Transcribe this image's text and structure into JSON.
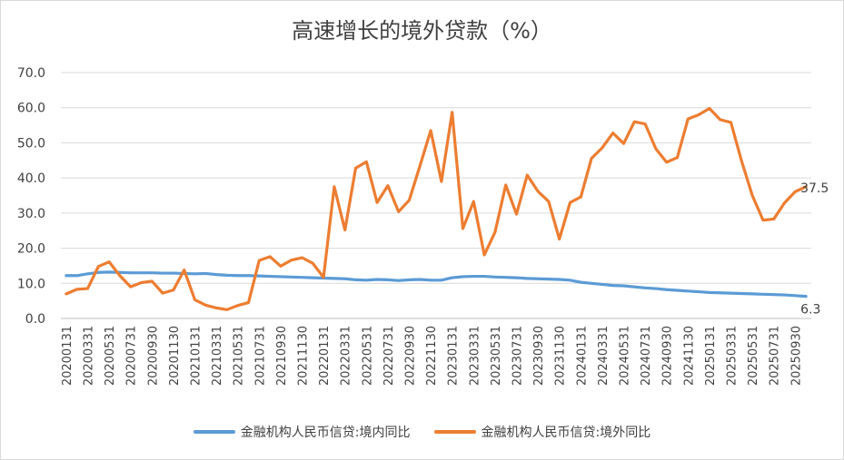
{
  "title": "高速增长的境外贷款（%）",
  "colors": {
    "domestic": "#5B9BD5",
    "overseas": "#ED7D31",
    "grid": "#d9d9d9",
    "text": "#404040"
  },
  "chart_data": {
    "type": "line",
    "title": "高速增长的境外贷款（%）",
    "ylim": [
      0,
      70
    ],
    "yticks": [
      "0.0",
      "10.0",
      "20.0",
      "30.0",
      "40.0",
      "50.0",
      "60.0",
      "70.0"
    ],
    "xtick_labels": [
      "20200131",
      "20200331",
      "20200531",
      "20200731",
      "20200930",
      "20201130",
      "20210131",
      "20210331",
      "20210531",
      "20210731",
      "20210930",
      "20211130",
      "20220131",
      "20220331",
      "20220531",
      "20220731",
      "20220930",
      "20221130",
      "20230131",
      "20230331",
      "20230531",
      "20230731",
      "20230930",
      "20231130",
      "20240131",
      "20240331",
      "20240531",
      "20240731",
      "20240930",
      "20241130",
      "20250131",
      "20250331",
      "20250531",
      "20250731",
      "20250930"
    ],
    "x": [
      "20200131",
      "20200229",
      "20200331",
      "20200430",
      "20200531",
      "20200630",
      "20200731",
      "20200831",
      "20200930",
      "20201031",
      "20201130",
      "20201231",
      "20210131",
      "20210228",
      "20210331",
      "20210430",
      "20210531",
      "20210630",
      "20210731",
      "20210831",
      "20210930",
      "20211031",
      "20211130",
      "20211231",
      "20220131",
      "20220228",
      "20220331",
      "20220430",
      "20220531",
      "20220630",
      "20220731",
      "20220831",
      "20220930",
      "20221031",
      "20221130",
      "20221231",
      "20230131",
      "20230228",
      "20230331",
      "20230430",
      "20230531",
      "20230630",
      "20230731",
      "20230831",
      "20230930",
      "20231031",
      "20231130",
      "20231231",
      "20240131",
      "20240229",
      "20240331",
      "20240430",
      "20240531",
      "20240630",
      "20240731",
      "20240831",
      "20240930",
      "20241031",
      "20241130",
      "20241231",
      "20250131",
      "20250228",
      "20250331",
      "20250430",
      "20250531",
      "20250630",
      "20250731",
      "20250831",
      "20250930",
      "20251031"
    ],
    "series": [
      {
        "name": "金融机构人民币信贷:境内同比",
        "color": "#5B9BD5",
        "values": [
          12.2,
          12.2,
          12.7,
          13.1,
          13.2,
          13.1,
          13.0,
          13.0,
          13.0,
          12.9,
          12.9,
          12.8,
          12.7,
          12.8,
          12.5,
          12.3,
          12.2,
          12.2,
          12.1,
          12.0,
          11.9,
          11.8,
          11.7,
          11.6,
          11.5,
          11.4,
          11.3,
          11.0,
          10.9,
          11.1,
          11.0,
          10.8,
          11.0,
          11.1,
          10.9,
          10.9,
          11.6,
          11.9,
          12.0,
          12.0,
          11.8,
          11.7,
          11.6,
          11.4,
          11.3,
          11.2,
          11.1,
          10.9,
          10.3,
          10.0,
          9.7,
          9.4,
          9.3,
          9.0,
          8.7,
          8.5,
          8.2,
          8.0,
          7.8,
          7.6,
          7.4,
          7.3,
          7.2,
          7.1,
          7.0,
          6.9,
          6.8,
          6.7,
          6.5,
          6.3
        ],
        "end_label": "6.3"
      },
      {
        "name": "金融机构人民币信贷:境外同比",
        "color": "#ED7D31",
        "values": [
          7.0,
          8.3,
          8.5,
          14.8,
          16.1,
          12.2,
          9.0,
          10.2,
          10.6,
          7.2,
          8.1,
          13.8,
          5.3,
          3.8,
          3.0,
          2.5,
          3.7,
          4.5,
          16.5,
          17.6,
          14.9,
          16.6,
          17.3,
          15.7,
          11.7,
          37.5,
          25.2,
          42.8,
          44.6,
          33.0,
          37.8,
          30.4,
          33.7,
          43.5,
          53.5,
          39.0,
          58.7,
          25.6,
          33.3,
          18.1,
          24.6,
          38.0,
          29.7,
          40.8,
          36.2,
          33.3,
          22.6,
          33.0,
          34.6,
          45.6,
          48.6,
          52.8,
          49.8,
          56.0,
          55.4,
          48.3,
          44.5,
          45.8,
          56.8,
          58.0,
          59.8,
          56.6,
          55.8,
          44.8,
          35.0,
          28.0,
          28.3,
          32.9,
          36.1,
          37.5
        ],
        "end_label": "37.5"
      }
    ],
    "legend_position": "bottom",
    "grid": true
  },
  "legend": [
    {
      "label": "金融机构人民币信贷:境内同比"
    },
    {
      "label": "金融机构人民币信贷:境外同比"
    }
  ]
}
